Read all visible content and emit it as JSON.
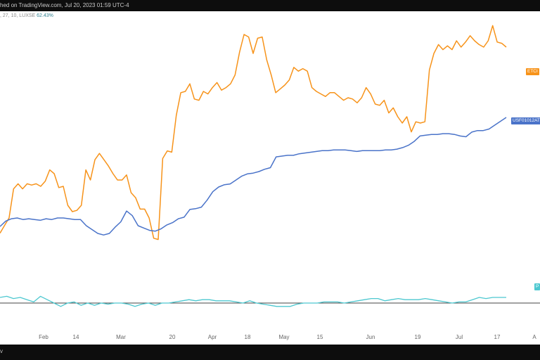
{
  "header": {
    "publish_text": "hed on TradingView.com, Jul 20, 2023 01:59 UTC-4"
  },
  "indicator": {
    "params": ", 27, 10, LUXSE",
    "value": "62.43%"
  },
  "footer": {
    "text": "v"
  },
  "colors": {
    "btc": "#f7931a",
    "dxy": "#4a73c9",
    "osc": "#4dc8d0",
    "zero": "#444444"
  },
  "chart_data": {
    "type": "line",
    "x_tick_labels": [
      "Feb",
      "14",
      "Mar",
      "20",
      "Apr",
      "18",
      "May",
      "15",
      "Jun",
      "19",
      "Jul",
      "17",
      "A"
    ],
    "series": [
      {
        "name": "ETC",
        "tag": "ETCI",
        "values": [
          -0.2,
          0.4,
          1.0,
          3.3,
          3.7,
          3.3,
          3.7,
          3.6,
          3.7,
          3.5,
          3.9,
          4.8,
          4.5,
          3.4,
          3.5,
          2.0,
          1.5,
          1.6,
          2.0,
          4.8,
          4.0,
          5.6,
          6.1,
          5.6,
          5.1,
          4.5,
          4.0,
          4.0,
          4.4,
          3.0,
          2.6,
          1.7,
          1.7,
          1.0,
          -0.6,
          -0.7,
          5.7,
          6.3,
          6.2,
          9.1,
          10.9,
          11.0,
          11.6,
          10.4,
          10.3,
          11.0,
          10.8,
          11.3,
          11.7,
          11.1,
          11.3,
          11.6,
          12.3,
          14.1,
          15.5,
          15.3,
          14.0,
          15.2,
          15.3,
          13.5,
          12.3,
          10.9,
          11.2,
          11.5,
          11.9,
          12.9,
          12.6,
          12.8,
          12.6,
          11.3,
          11.0,
          10.8,
          10.6,
          10.9,
          10.9,
          10.6,
          10.3,
          10.5,
          10.4,
          10.1,
          10.5,
          11.3,
          10.8,
          10.0,
          9.9,
          10.3,
          9.3,
          9.7,
          9.0,
          8.5,
          9.0,
          7.8,
          8.6,
          8.5,
          8.6,
          12.7,
          14.0,
          14.7,
          14.3,
          14.6,
          14.3,
          15.0,
          14.5,
          14.9,
          15.4,
          15.0,
          14.7,
          14.5,
          15.0,
          16.2,
          14.9,
          14.8,
          14.5
        ]
      },
      {
        "name": "USF01012AT",
        "tag": "USF01012AT",
        "values": [
          -0.1,
          0.6,
          0.9,
          1.0,
          0.8,
          0.9,
          0.8,
          0.7,
          0.9,
          0.8,
          1.0,
          1.0,
          0.9,
          0.8,
          0.8,
          0.0,
          -0.5,
          -1.0,
          -1.2,
          -1.0,
          -0.2,
          0.5,
          1.9,
          1.3,
          0.0,
          -0.3,
          -0.6,
          -0.7,
          -0.4,
          0.1,
          0.4,
          0.9,
          1.1,
          2.1,
          2.2,
          2.4,
          3.3,
          4.4,
          5.0,
          5.3,
          5.4,
          5.9,
          6.4,
          6.7,
          6.8,
          7.0,
          7.3,
          7.5,
          8.9,
          9.0,
          9.1,
          9.1,
          9.3,
          9.4,
          9.5,
          9.6,
          9.7,
          9.7,
          9.8,
          9.8,
          9.8,
          9.7,
          9.6,
          9.7,
          9.7,
          9.7,
          9.7,
          9.8,
          9.8,
          9.9,
          10.1,
          10.4,
          10.9,
          11.6,
          11.7,
          11.8,
          11.8,
          11.9,
          11.9,
          11.8,
          11.6,
          11.5,
          12.1,
          12.3,
          12.3,
          12.5,
          13.0,
          13.5,
          14.0
        ]
      },
      {
        "name": "P",
        "tag": "P",
        "values": [
          0.5,
          0.6,
          0.4,
          0.5,
          0.3,
          0.1,
          0.6,
          0.3,
          0.0,
          -0.3,
          0.0,
          0.1,
          -0.2,
          0.0,
          -0.2,
          0.0,
          -0.1,
          0.0,
          0.0,
          -0.1,
          -0.3,
          -0.1,
          0.0,
          -0.2,
          0.0,
          0.0,
          0.1,
          0.2,
          0.3,
          0.2,
          0.3,
          0.3,
          0.2,
          0.2,
          0.2,
          0.1,
          0.0,
          0.2,
          0.0,
          -0.1,
          -0.2,
          -0.3,
          -0.3,
          -0.3,
          -0.1,
          0.0,
          0.0,
          0.0,
          0.1,
          0.1,
          0.1,
          0.0,
          0.1,
          0.2,
          0.3,
          0.4,
          0.4,
          0.2,
          0.3,
          0.4,
          0.3,
          0.3,
          0.3,
          0.4,
          0.3,
          0.2,
          0.1,
          0.0,
          0.1,
          0.1,
          0.3,
          0.5,
          0.4,
          0.5,
          0.5,
          0.5
        ]
      }
    ],
    "grid": false,
    "legend": "right-edge tags"
  }
}
